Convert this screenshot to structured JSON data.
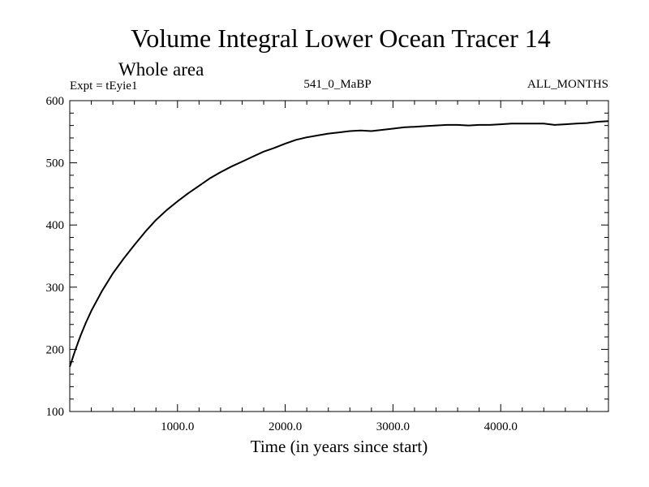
{
  "chart_data": {
    "type": "line",
    "title": "Volume Integral Lower Ocean Tracer 14",
    "subtitle": "Whole area",
    "annotations": {
      "left": "Expt = tEyie1",
      "center": "541_0_MaBP",
      "right": "ALL_MONTHS"
    },
    "xlabel": "Time (in years since start)",
    "ylabel": "",
    "xlim": [
      0,
      5000
    ],
    "ylim": [
      100,
      600
    ],
    "x_ticks": [
      1000,
      2000,
      3000,
      4000
    ],
    "x_tick_labels": [
      "1000.0",
      "2000.0",
      "3000.0",
      "4000.0"
    ],
    "x_minor_step": 200,
    "y_ticks": [
      100,
      200,
      300,
      400,
      500,
      600
    ],
    "y_tick_labels": [
      "100",
      "200",
      "300",
      "400",
      "500",
      "600"
    ],
    "y_minor_step": 20,
    "grid": false,
    "series": [
      {
        "name": "Lower Ocean Tracer 14",
        "x": [
          0,
          50,
          100,
          150,
          200,
          300,
          400,
          500,
          600,
          700,
          800,
          900,
          1000,
          1100,
          1200,
          1300,
          1400,
          1500,
          1600,
          1700,
          1800,
          1900,
          2000,
          2100,
          2200,
          2300,
          2400,
          2500,
          2600,
          2700,
          2800,
          2900,
          3000,
          3100,
          3200,
          3300,
          3400,
          3500,
          3600,
          3700,
          3800,
          3900,
          4000,
          4100,
          4200,
          4300,
          4400,
          4500,
          4600,
          4700,
          4800,
          4900,
          5000
        ],
        "values": [
          172,
          198,
          222,
          243,
          262,
          294,
          322,
          346,
          368,
          389,
          408,
          424,
          438,
          451,
          463,
          475,
          485,
          494,
          502,
          510,
          518,
          524,
          531,
          537,
          541,
          544,
          547,
          549,
          551,
          552,
          551,
          553,
          555,
          557,
          558,
          559,
          560,
          561,
          561,
          560,
          561,
          561,
          562,
          563,
          563,
          563,
          563,
          561,
          562,
          563,
          564,
          566,
          567
        ]
      }
    ]
  }
}
